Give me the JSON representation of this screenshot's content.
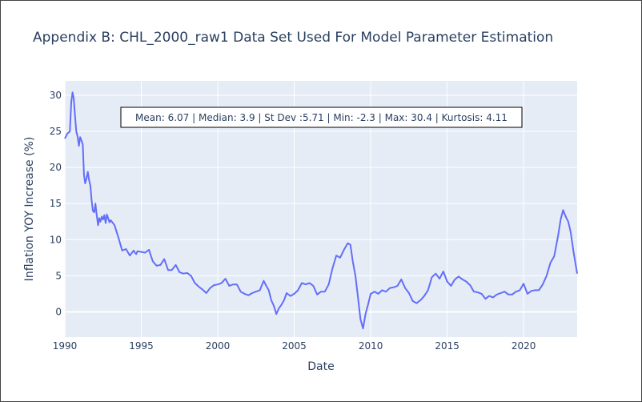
{
  "chart_data": {
    "type": "line",
    "title": "Appendix B: CHL_2000_raw1 Data Set Used For Model Parameter Estimation",
    "xlabel": "Date",
    "ylabel": "Inflation YOY Increase (%)",
    "xlim": [
      1990,
      2023.5
    ],
    "ylim": [
      -3.5,
      32
    ],
    "x_ticks": [
      "1990",
      "1995",
      "2000",
      "2005",
      "2010",
      "2015",
      "2020"
    ],
    "y_ticks": [
      "0",
      "5",
      "10",
      "15",
      "20",
      "25",
      "30"
    ],
    "grid": true,
    "line_color": "#636efa",
    "annotation": "Mean: 6.07 | Median: 3.9 | St Dev :5.71 | Min: -2.3 | Max: 30.4 | Kurtosis: 4.11",
    "series": [
      {
        "x": [
          1990.0,
          1990.17,
          1990.33,
          1990.42,
          1990.5,
          1990.58,
          1990.67,
          1990.75,
          1990.83,
          1990.92,
          1991.0,
          1991.08,
          1991.17,
          1991.25,
          1991.33,
          1991.42,
          1991.5,
          1991.58,
          1991.67,
          1991.75,
          1991.83,
          1991.92,
          1992.0,
          1992.08,
          1992.17,
          1992.25,
          1992.33,
          1992.42,
          1992.5,
          1992.58,
          1992.67,
          1992.75,
          1992.83,
          1992.92,
          1993.0,
          1993.25,
          1993.5,
          1993.75,
          1994.0,
          1994.25,
          1994.5,
          1994.58,
          1994.67,
          1994.75,
          1995.0,
          1995.25,
          1995.5,
          1995.75,
          1996.0,
          1996.25,
          1996.5,
          1996.75,
          1997.0,
          1997.25,
          1997.5,
          1997.75,
          1998.0,
          1998.25,
          1998.5,
          1998.75,
          1999.0,
          1999.25,
          1999.5,
          1999.75,
          2000.0,
          2000.25,
          2000.5,
          2000.75,
          2001.0,
          2001.25,
          2001.5,
          2001.75,
          2002.0,
          2002.25,
          2002.5,
          2002.75,
          2003.0,
          2003.17,
          2003.33,
          2003.5,
          2003.67,
          2003.83,
          2004.0,
          2004.17,
          2004.33,
          2004.5,
          2004.75,
          2005.0,
          2005.25,
          2005.5,
          2005.75,
          2006.0,
          2006.25,
          2006.5,
          2006.75,
          2007.0,
          2007.25,
          2007.5,
          2007.75,
          2008.0,
          2008.25,
          2008.5,
          2008.67,
          2008.83,
          2009.0,
          2009.17,
          2009.33,
          2009.5,
          2009.67,
          2009.83,
          2010.0,
          2010.25,
          2010.5,
          2010.75,
          2011.0,
          2011.25,
          2011.5,
          2011.75,
          2012.0,
          2012.25,
          2012.5,
          2012.75,
          2013.0,
          2013.25,
          2013.5,
          2013.75,
          2014.0,
          2014.25,
          2014.5,
          2014.75,
          2015.0,
          2015.25,
          2015.5,
          2015.75,
          2016.0,
          2016.25,
          2016.5,
          2016.75,
          2017.0,
          2017.25,
          2017.5,
          2017.75,
          2018.0,
          2018.25,
          2018.5,
          2018.75,
          2019.0,
          2019.25,
          2019.5,
          2019.75,
          2020.0,
          2020.25,
          2020.5,
          2020.75,
          2021.0,
          2021.25,
          2021.5,
          2021.75,
          2022.0,
          2022.25,
          2022.42,
          2022.58,
          2022.75,
          2022.92,
          2023.08,
          2023.25,
          2023.5
        ],
        "values": [
          24.0,
          24.7,
          25.0,
          29.0,
          30.4,
          29.6,
          27.0,
          25.0,
          24.3,
          23.0,
          24.2,
          23.8,
          23.2,
          19.0,
          17.8,
          18.5,
          19.4,
          18.3,
          17.5,
          15.5,
          14.0,
          13.8,
          15.0,
          13.5,
          12.0,
          13.0,
          12.5,
          13.2,
          12.8,
          13.4,
          12.3,
          13.5,
          13.0,
          12.4,
          12.7,
          12.0,
          10.3,
          8.5,
          8.7,
          7.8,
          8.5,
          8.2,
          8.0,
          8.4,
          8.3,
          8.2,
          8.6,
          7.0,
          6.4,
          6.5,
          7.3,
          5.8,
          5.8,
          6.5,
          5.5,
          5.3,
          5.4,
          5.0,
          4.0,
          3.5,
          3.1,
          2.6,
          3.3,
          3.7,
          3.8,
          4.0,
          4.6,
          3.6,
          3.8,
          3.8,
          2.8,
          2.5,
          2.3,
          2.6,
          2.8,
          3.0,
          4.3,
          3.6,
          3.0,
          1.6,
          0.8,
          -0.3,
          0.5,
          1.0,
          1.6,
          2.6,
          2.2,
          2.5,
          3.0,
          4.0,
          3.8,
          4.0,
          3.6,
          2.4,
          2.8,
          2.8,
          3.8,
          6.0,
          7.8,
          7.5,
          8.6,
          9.5,
          9.3,
          7.0,
          5.0,
          2.0,
          -1.0,
          -2.3,
          -0.2,
          1.0,
          2.5,
          2.8,
          2.5,
          3.0,
          2.8,
          3.3,
          3.4,
          3.6,
          4.5,
          3.3,
          2.6,
          1.5,
          1.2,
          1.6,
          2.2,
          3.0,
          4.8,
          5.3,
          4.6,
          5.6,
          4.2,
          3.6,
          4.5,
          4.9,
          4.5,
          4.2,
          3.7,
          2.8,
          2.7,
          2.5,
          1.8,
          2.2,
          2.0,
          2.4,
          2.6,
          2.8,
          2.4,
          2.4,
          2.8,
          3.0,
          3.9,
          2.5,
          2.9,
          3.0,
          3.0,
          3.8,
          5.0,
          6.8,
          7.7,
          10.5,
          12.8,
          14.1,
          13.2,
          12.5,
          11.0,
          8.5,
          5.3
        ]
      }
    ]
  }
}
